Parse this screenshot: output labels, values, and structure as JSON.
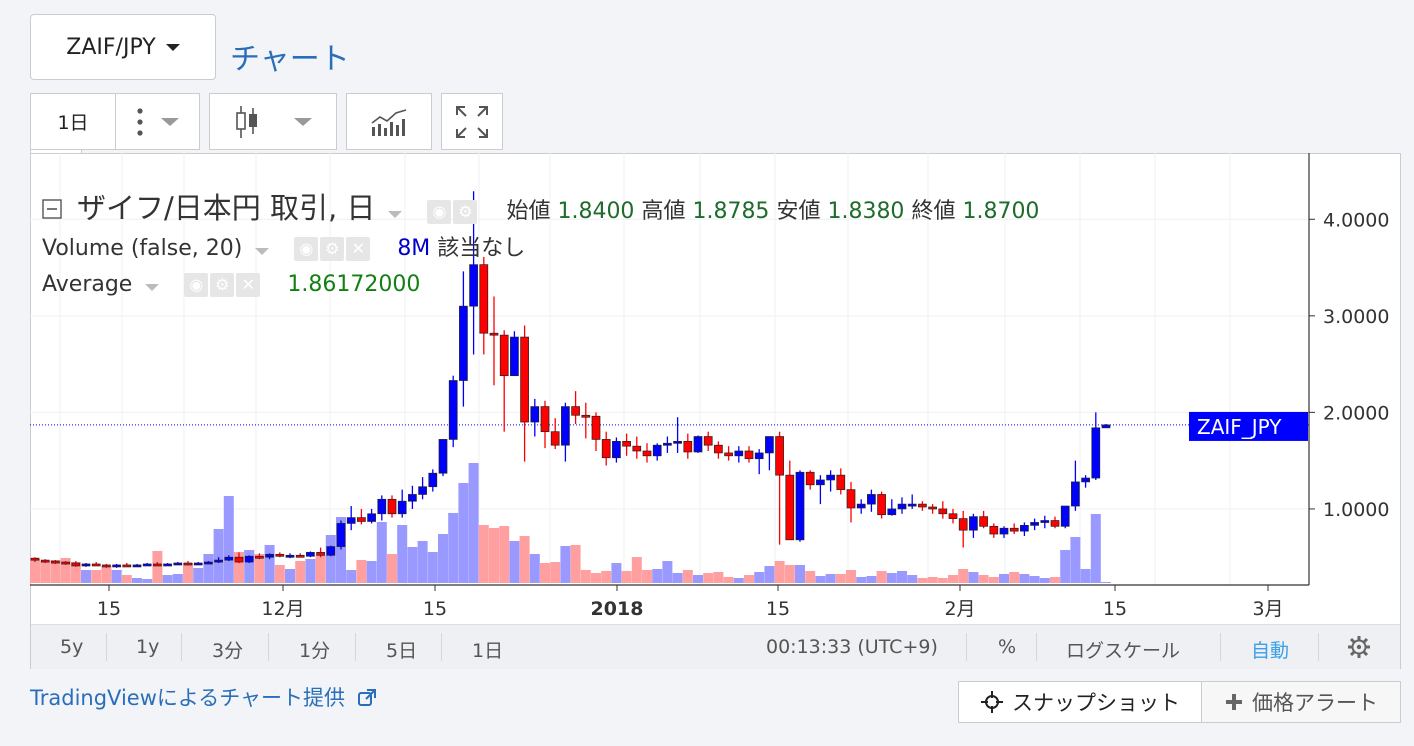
{
  "header": {
    "pair_label": "ZAIF/JPY",
    "chart_link": "チャート"
  },
  "toolbar": {
    "interval": "1日"
  },
  "legend": {
    "title": "ザイフ/日本円 取引, 日",
    "open_label": "始値",
    "open": "1.8400",
    "high_label": "高値",
    "high": "1.8785",
    "low_label": "安値",
    "low": "1.8380",
    "close_label": "終値",
    "close": "1.8700",
    "volume_name": "Volume (false, 20)",
    "volume_value": "8M",
    "volume_extra": "該当なし",
    "average_name": "Average",
    "average_value": "1.86172000"
  },
  "bottom_bar": {
    "ranges": [
      "5y",
      "1y",
      "3分",
      "1分",
      "5日",
      "1日"
    ],
    "time": "00:13:33 (UTC+9)",
    "percent": "%",
    "log": "ログスケール",
    "auto": "自動"
  },
  "footer": {
    "attribution": "TradingViewによるチャート提供",
    "snapshot": "スナップショット",
    "price_alert": "価格アラート"
  },
  "colors": {
    "up": "#0000ff",
    "down": "#ff0000",
    "vol_up": "#9999ff",
    "vol_down": "#ff9f9f",
    "accent": "#2a6ebb",
    "price_label_bg": "#0000ff"
  },
  "chart_data": {
    "type": "candlestick",
    "xlabel": "",
    "ylabel": "",
    "ylim": [
      0.15,
      4.5
    ],
    "yticks": [
      "1.0000",
      "2.0000",
      "3.0000",
      "4.0000"
    ],
    "xticks": [
      "15",
      "12月",
      "15",
      "2018",
      "15",
      "2月",
      "15",
      "3月"
    ],
    "current_price": 1.87,
    "price_label": "ZAIF_JPY",
    "candles": [
      [
        0.49,
        0.5,
        0.45,
        0.47,
        0.24
      ],
      [
        0.47,
        0.48,
        0.44,
        0.46,
        0.22
      ],
      [
        0.46,
        0.47,
        0.43,
        0.45,
        0.23
      ],
      [
        0.45,
        0.46,
        0.42,
        0.44,
        0.25
      ],
      [
        0.44,
        0.46,
        0.4,
        0.41,
        0.21
      ],
      [
        0.41,
        0.44,
        0.4,
        0.43,
        0.13
      ],
      [
        0.43,
        0.45,
        0.41,
        0.42,
        0.13
      ],
      [
        0.42,
        0.43,
        0.39,
        0.4,
        0.17
      ],
      [
        0.4,
        0.43,
        0.39,
        0.42,
        0.13
      ],
      [
        0.42,
        0.44,
        0.4,
        0.41,
        0.08
      ],
      [
        0.41,
        0.43,
        0.4,
        0.42,
        0.05
      ],
      [
        0.42,
        0.44,
        0.41,
        0.43,
        0.04
      ],
      [
        0.43,
        0.45,
        0.41,
        0.42,
        0.32
      ],
      [
        0.42,
        0.44,
        0.41,
        0.43,
        0.08
      ],
      [
        0.43,
        0.45,
        0.42,
        0.44,
        0.09
      ],
      [
        0.44,
        0.46,
        0.42,
        0.43,
        0.2
      ],
      [
        0.43,
        0.45,
        0.42,
        0.44,
        0.15
      ],
      [
        0.44,
        0.46,
        0.43,
        0.45,
        0.29
      ],
      [
        0.45,
        0.5,
        0.44,
        0.47,
        0.54
      ],
      [
        0.47,
        0.52,
        0.46,
        0.5,
        0.87
      ],
      [
        0.5,
        0.55,
        0.44,
        0.45,
        0.31
      ],
      [
        0.45,
        0.52,
        0.44,
        0.51,
        0.33
      ],
      [
        0.51,
        0.54,
        0.48,
        0.5,
        0.29
      ],
      [
        0.5,
        0.54,
        0.48,
        0.53,
        0.38
      ],
      [
        0.53,
        0.55,
        0.5,
        0.51,
        0.18
      ],
      [
        0.51,
        0.54,
        0.49,
        0.52,
        0.14
      ],
      [
        0.52,
        0.54,
        0.5,
        0.51,
        0.22
      ],
      [
        0.51,
        0.56,
        0.5,
        0.55,
        0.24
      ],
      [
        0.55,
        0.6,
        0.5,
        0.52,
        0.28
      ],
      [
        0.52,
        0.62,
        0.51,
        0.61,
        0.48
      ],
      [
        0.61,
        0.88,
        0.58,
        0.85,
        0.66
      ],
      [
        0.85,
        1.03,
        0.78,
        0.91,
        0.13
      ],
      [
        0.91,
        1.0,
        0.84,
        0.87,
        0.23
      ],
      [
        0.87,
        1.0,
        0.85,
        0.95,
        0.22
      ],
      [
        0.95,
        1.14,
        0.88,
        1.1,
        0.61
      ],
      [
        1.1,
        1.14,
        0.91,
        0.95,
        0.29
      ],
      [
        0.95,
        1.2,
        0.91,
        1.08,
        0.58
      ],
      [
        1.08,
        1.24,
        1.0,
        1.15,
        0.36
      ],
      [
        1.15,
        1.33,
        1.1,
        1.23,
        0.42
      ],
      [
        1.23,
        1.41,
        1.18,
        1.37,
        0.31
      ],
      [
        1.37,
        1.7,
        1.34,
        1.72,
        0.49
      ],
      [
        1.72,
        2.38,
        1.64,
        2.33,
        0.7
      ],
      [
        2.33,
        3.46,
        2.06,
        3.1,
        1.0
      ],
      [
        3.1,
        4.29,
        2.6,
        3.53,
        1.2
      ],
      [
        3.53,
        3.61,
        2.6,
        2.82,
        0.58
      ],
      [
        2.82,
        3.2,
        2.28,
        2.8,
        0.55
      ],
      [
        2.8,
        2.85,
        1.8,
        2.38,
        0.57
      ],
      [
        2.38,
        2.84,
        2.38,
        2.78,
        0.42
      ],
      [
        2.78,
        2.9,
        1.49,
        1.9,
        0.47
      ],
      [
        1.9,
        2.14,
        1.75,
        2.06,
        0.29
      ],
      [
        2.06,
        2.12,
        1.63,
        1.8,
        0.2
      ],
      [
        1.8,
        1.94,
        1.62,
        1.66,
        0.21
      ],
      [
        1.66,
        2.1,
        1.49,
        2.06,
        0.37
      ],
      [
        2.06,
        2.22,
        1.88,
        1.97,
        0.38
      ],
      [
        1.97,
        2.1,
        1.73,
        1.96,
        0.13
      ],
      [
        1.96,
        2.0,
        1.6,
        1.72,
        0.1
      ],
      [
        1.72,
        1.8,
        1.45,
        1.53,
        0.12
      ],
      [
        1.53,
        1.74,
        1.48,
        1.7,
        0.2
      ],
      [
        1.7,
        1.78,
        1.55,
        1.65,
        0.12
      ],
      [
        1.65,
        1.75,
        1.52,
        1.6,
        0.26
      ],
      [
        1.6,
        1.68,
        1.48,
        1.55,
        0.13
      ],
      [
        1.55,
        1.68,
        1.5,
        1.66,
        0.14
      ],
      [
        1.66,
        1.75,
        1.58,
        1.68,
        0.22
      ],
      [
        1.68,
        1.95,
        1.58,
        1.7,
        0.1
      ],
      [
        1.7,
        1.78,
        1.52,
        1.59,
        0.13
      ],
      [
        1.59,
        1.76,
        1.58,
        1.75,
        0.08
      ],
      [
        1.75,
        1.8,
        1.6,
        1.66,
        0.1
      ],
      [
        1.66,
        1.7,
        1.52,
        1.58,
        0.11
      ],
      [
        1.58,
        1.65,
        1.5,
        1.55,
        0.06
      ],
      [
        1.55,
        1.65,
        1.48,
        1.6,
        0.05
      ],
      [
        1.6,
        1.65,
        1.48,
        1.52,
        0.08
      ],
      [
        1.52,
        1.62,
        1.36,
        1.58,
        0.11
      ],
      [
        1.58,
        1.75,
        1.4,
        1.75,
        0.17
      ],
      [
        1.75,
        1.8,
        0.63,
        1.35,
        0.22
      ],
      [
        1.35,
        1.5,
        0.7,
        0.68,
        0.18
      ],
      [
        0.68,
        1.4,
        0.66,
        1.38,
        0.18
      ],
      [
        1.38,
        1.4,
        1.2,
        1.25,
        0.12
      ],
      [
        1.25,
        1.35,
        1.05,
        1.3,
        0.07
      ],
      [
        1.3,
        1.4,
        1.18,
        1.35,
        0.09
      ],
      [
        1.35,
        1.42,
        1.15,
        1.2,
        0.09
      ],
      [
        1.2,
        1.28,
        0.86,
        1.01,
        0.13
      ],
      [
        1.01,
        1.1,
        0.95,
        1.05,
        0.06
      ],
      [
        1.05,
        1.2,
        0.97,
        1.15,
        0.07
      ],
      [
        1.15,
        1.18,
        0.9,
        0.94,
        0.12
      ],
      [
        0.94,
        1.1,
        0.93,
        1.0,
        0.1
      ],
      [
        1.0,
        1.12,
        0.95,
        1.05,
        0.12
      ],
      [
        1.05,
        1.15,
        1.0,
        1.05,
        0.08
      ],
      [
        1.05,
        1.08,
        0.98,
        1.02,
        0.05
      ],
      [
        1.02,
        1.05,
        0.95,
        1.0,
        0.06
      ],
      [
        1.0,
        1.08,
        0.9,
        0.95,
        0.05
      ],
      [
        0.95,
        1.0,
        0.85,
        0.9,
        0.08
      ],
      [
        0.9,
        0.98,
        0.6,
        0.78,
        0.14
      ],
      [
        0.78,
        0.95,
        0.7,
        0.92,
        0.11
      ],
      [
        0.92,
        0.98,
        0.8,
        0.82,
        0.08
      ],
      [
        0.82,
        0.85,
        0.7,
        0.74,
        0.06
      ],
      [
        0.74,
        0.82,
        0.7,
        0.8,
        0.09
      ],
      [
        0.8,
        0.85,
        0.74,
        0.77,
        0.11
      ],
      [
        0.77,
        0.86,
        0.72,
        0.83,
        0.09
      ],
      [
        0.83,
        0.9,
        0.78,
        0.86,
        0.07
      ],
      [
        0.86,
        0.93,
        0.8,
        0.88,
        0.05
      ],
      [
        0.88,
        0.92,
        0.8,
        0.82,
        0.06
      ],
      [
        0.82,
        1.03,
        0.8,
        1.03,
        0.33
      ],
      [
        1.03,
        1.5,
        0.98,
        1.28,
        0.46
      ],
      [
        1.28,
        1.35,
        1.22,
        1.32,
        0.14
      ],
      [
        1.32,
        2.0,
        1.3,
        1.84,
        0.69
      ],
      [
        1.84,
        1.88,
        1.84,
        1.87,
        0.01
      ]
    ]
  }
}
